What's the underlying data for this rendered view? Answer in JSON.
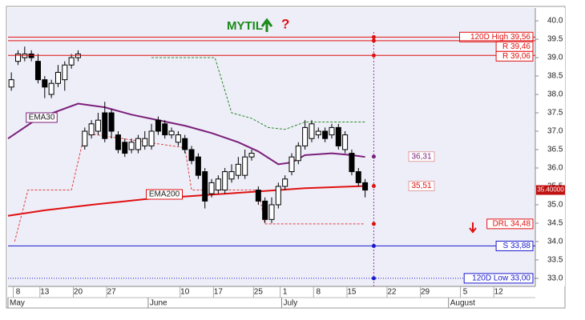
{
  "chart_data": {
    "type": "candlestick",
    "title": "MYTIL",
    "title_mark": "?",
    "open": [
      38.2,
      38.9,
      39.0,
      39.1,
      38.9,
      38.4,
      38.0,
      38.3,
      38.4,
      38.8,
      39.0,
      36.6,
      36.9,
      37.0,
      37.5,
      37.5,
      36.9,
      36.7,
      36.5,
      36.5,
      36.6,
      36.6,
      37.3,
      37.2,
      36.9,
      36.7,
      36.8,
      36.5,
      36.3,
      35.9,
      35.3,
      35.4,
      35.4,
      35.7,
      35.8,
      35.8,
      36.3,
      35.4,
      35.1,
      34.6,
      35.0,
      35.5,
      35.9,
      36.2,
      36.6,
      36.8,
      36.9,
      37.0,
      36.9,
      37.1,
      36.5,
      36.4,
      35.9,
      35.6
    ],
    "high": [
      38.6,
      39.2,
      39.3,
      39.2,
      39.1,
      38.5,
      38.4,
      38.8,
      38.9,
      39.1,
      39.2,
      37.1,
      37.3,
      37.5,
      37.8,
      37.6,
      37.0,
      36.8,
      36.8,
      36.9,
      37.0,
      37.2,
      37.4,
      37.3,
      37.1,
      37.0,
      36.9,
      36.6,
      36.4,
      36.0,
      35.7,
      35.8,
      36.0,
      36.1,
      36.3,
      36.5,
      36.5,
      35.5,
      35.2,
      35.2,
      35.6,
      35.8,
      36.4,
      36.7,
      37.3,
      37.3,
      37.1,
      37.1,
      37.2,
      37.2,
      37.0,
      36.5,
      36.0,
      35.7
    ],
    "low": [
      38.1,
      38.8,
      38.9,
      38.9,
      38.3,
      37.9,
      37.9,
      38.2,
      38.1,
      38.7,
      38.9,
      36.5,
      36.8,
      36.9,
      36.7,
      36.8,
      36.4,
      36.3,
      36.4,
      36.4,
      36.5,
      36.5,
      36.9,
      36.8,
      36.8,
      36.6,
      36.4,
      36.1,
      35.7,
      34.9,
      35.2,
      35.3,
      35.3,
      35.6,
      35.7,
      35.7,
      36.2,
      35.0,
      34.5,
      34.5,
      34.9,
      35.4,
      35.8,
      36.1,
      36.5,
      36.7,
      36.8,
      36.7,
      36.8,
      36.5,
      36.4,
      35.8,
      35.5,
      35.2
    ],
    "close": [
      38.4,
      39.1,
      39.1,
      39.0,
      38.4,
      38.2,
      38.3,
      38.6,
      38.8,
      39.0,
      39.1,
      37.0,
      37.2,
      37.3,
      36.8,
      37.0,
      36.5,
      36.4,
      36.7,
      36.8,
      36.8,
      37.0,
      37.0,
      36.9,
      37.0,
      36.9,
      36.5,
      36.2,
      35.8,
      35.1,
      35.6,
      35.7,
      35.9,
      35.9,
      36.1,
      36.3,
      36.4,
      35.1,
      34.6,
      35.0,
      35.5,
      35.7,
      36.3,
      36.6,
      37.1,
      37.2,
      37.0,
      36.8,
      37.1,
      36.6,
      36.9,
      35.9,
      35.6,
      35.4
    ],
    "series": [
      {
        "name": "EMA30",
        "color": "#7a1f7a",
        "style": "solid",
        "x": [
          -0.5,
          4,
          10,
          14,
          18,
          22,
          26,
          30,
          34,
          37,
          40,
          42,
          44,
          48,
          51,
          53
        ],
        "values": [
          36.8,
          37.35,
          37.75,
          37.65,
          37.45,
          37.3,
          37.15,
          36.95,
          36.7,
          36.45,
          36.1,
          36.15,
          36.35,
          36.4,
          36.35,
          36.3
        ]
      },
      {
        "name": "EMA200",
        "color": "#e01010",
        "style": "solid",
        "x": [
          -0.5,
          5,
          12,
          20,
          28,
          36,
          44,
          53
        ],
        "values": [
          34.7,
          34.85,
          35.0,
          35.15,
          35.25,
          35.35,
          35.45,
          35.51
        ]
      },
      {
        "color": "#2a8a2a",
        "style": "dashed",
        "x": [
          21,
          30.5,
          33,
          36,
          38.5,
          41,
          44,
          53
        ],
        "values": [
          39.0,
          39.0,
          37.5,
          37.35,
          37.1,
          37.05,
          37.25,
          37.25
        ]
      },
      {
        "color": "#e04040",
        "style": "dashed",
        "x": [
          0.5,
          2.5,
          9,
          11,
          26,
          27,
          37,
          38,
          53
        ],
        "values": [
          34.0,
          35.4,
          35.4,
          36.95,
          36.55,
          35.4,
          35.4,
          34.48,
          34.48
        ]
      }
    ],
    "levels": [
      {
        "value": 39.56,
        "label": "120D High 39,56",
        "color": "#e01010",
        "style": "solid"
      },
      {
        "value": 39.46,
        "label": "R 39,46",
        "color": "#e01010",
        "style": "solid"
      },
      {
        "value": 39.06,
        "label": "R 39,06",
        "color": "#e01010",
        "style": "solid"
      },
      {
        "value": 34.48,
        "label": "DRL 34,48",
        "color": "#e01010",
        "style": "none"
      },
      {
        "value": 33.88,
        "label": "S 33,88",
        "color": "#1a1acc",
        "style": "solid"
      },
      {
        "value": 33.0,
        "label": "120D Low 33,00",
        "color": "#1a1acc",
        "style": "dotted"
      }
    ],
    "value_boxes": [
      {
        "value": 36.31,
        "label": "36,31",
        "color": "#7a1f7a"
      },
      {
        "value": 35.51,
        "label": "35,51",
        "color": "#e01010"
      }
    ],
    "last_price": {
      "value": 35.4,
      "label": "35.40000"
    },
    "ylim": [
      32.78,
      40.35
    ],
    "yticks": [
      {
        "value": 33,
        "label": "33.0"
      },
      33.5,
      {
        "value": 34,
        "label": "34.0"
      },
      34.5,
      {
        "value": 35,
        "label": "35.0"
      },
      35.5,
      {
        "value": 36,
        "label": "36.0"
      },
      36.5,
      {
        "value": 37,
        "label": "37.0"
      },
      37.5,
      {
        "value": 38,
        "label": "38.0"
      },
      38.5,
      {
        "value": 39,
        "label": "39.0"
      },
      39.5,
      {
        "value": 40,
        "label": "40.0"
      }
    ],
    "xlim": [
      -0.5,
      78.5
    ],
    "xticks": [
      {
        "value": 1,
        "label": "8"
      },
      {
        "value": 5,
        "label": "13"
      },
      {
        "value": 10,
        "label": "20"
      },
      {
        "value": 15,
        "label": "27"
      },
      {
        "value": 26,
        "label": "10"
      },
      {
        "value": 31,
        "label": "17"
      },
      {
        "value": 37,
        "label": "25"
      },
      {
        "value": 41,
        "label": "1"
      },
      {
        "value": 46,
        "label": "8"
      },
      {
        "value": 51,
        "label": "15"
      },
      {
        "value": 57,
        "label": "22"
      },
      {
        "value": 62,
        "label": "29"
      },
      {
        "value": 68,
        "label": "5"
      },
      {
        "value": 73,
        "label": "12"
      }
    ],
    "months": [
      {
        "value": -0.5,
        "label": "May"
      },
      {
        "value": 20.5,
        "label": "June"
      },
      {
        "value": 40.5,
        "label": "July"
      },
      {
        "value": 65.5,
        "label": "August"
      }
    ]
  }
}
